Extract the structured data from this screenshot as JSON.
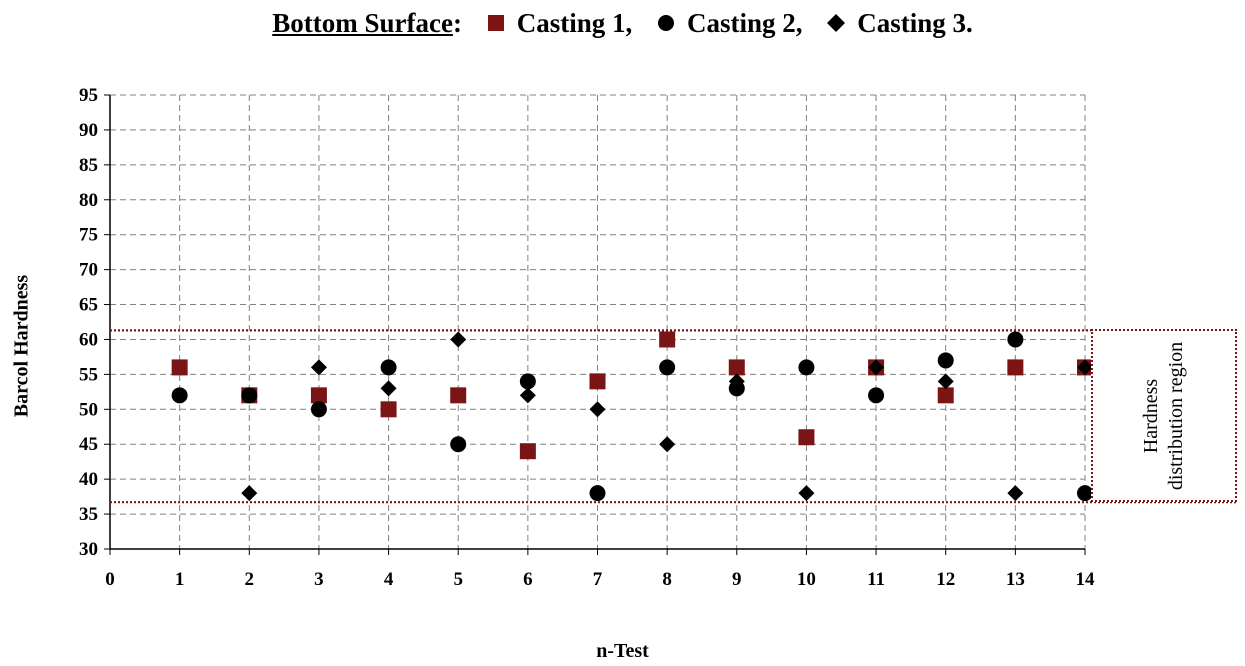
{
  "chart_data": {
    "type": "scatter",
    "title_underlined": "Bottom Surface",
    "title_colon": ":",
    "legend_position": "top, inline with title",
    "series": [
      {
        "name": "Casting 1,",
        "marker": "square",
        "color": "#7b1515",
        "x": [
          1,
          2,
          3,
          4,
          5,
          6,
          7,
          8,
          9,
          10,
          11,
          12,
          13,
          14
        ],
        "y": [
          56,
          52,
          52,
          50,
          52,
          44,
          54,
          60,
          56,
          46,
          56,
          52,
          56,
          56
        ]
      },
      {
        "name": "Casting 2,",
        "marker": "circle",
        "color": "#000000",
        "x": [
          1,
          2,
          3,
          4,
          5,
          6,
          7,
          8,
          9,
          10,
          11,
          12,
          13,
          14
        ],
        "y": [
          52,
          52,
          50,
          56,
          45,
          54,
          38,
          56,
          53,
          56,
          52,
          57,
          60,
          38
        ]
      },
      {
        "name": "Casting 3.",
        "marker": "diamond",
        "color": "#000000",
        "x": [
          1,
          2,
          3,
          4,
          5,
          6,
          7,
          8,
          9,
          10,
          11,
          12,
          13,
          14
        ],
        "y": [
          52,
          38,
          56,
          53,
          60,
          52,
          50,
          45,
          54,
          38,
          56,
          54,
          38,
          56
        ]
      }
    ],
    "xlabel": "n-Test",
    "ylabel": "Barcol Hardness",
    "xlim": [
      0,
      14
    ],
    "ylim": [
      30,
      95
    ],
    "x_ticks": [
      "0",
      "1",
      "2",
      "3",
      "4",
      "5",
      "6",
      "7",
      "8",
      "9",
      "10",
      "11",
      "12",
      "13",
      "14"
    ],
    "y_ticks": [
      "30",
      "35",
      "40",
      "45",
      "50",
      "55",
      "60",
      "65",
      "70",
      "75",
      "80",
      "85",
      "90",
      "95"
    ],
    "grid": true,
    "region": {
      "label": "Hardness distribution region",
      "y_min": 36.7,
      "y_max": 61.3,
      "color": "#7b1515"
    }
  }
}
